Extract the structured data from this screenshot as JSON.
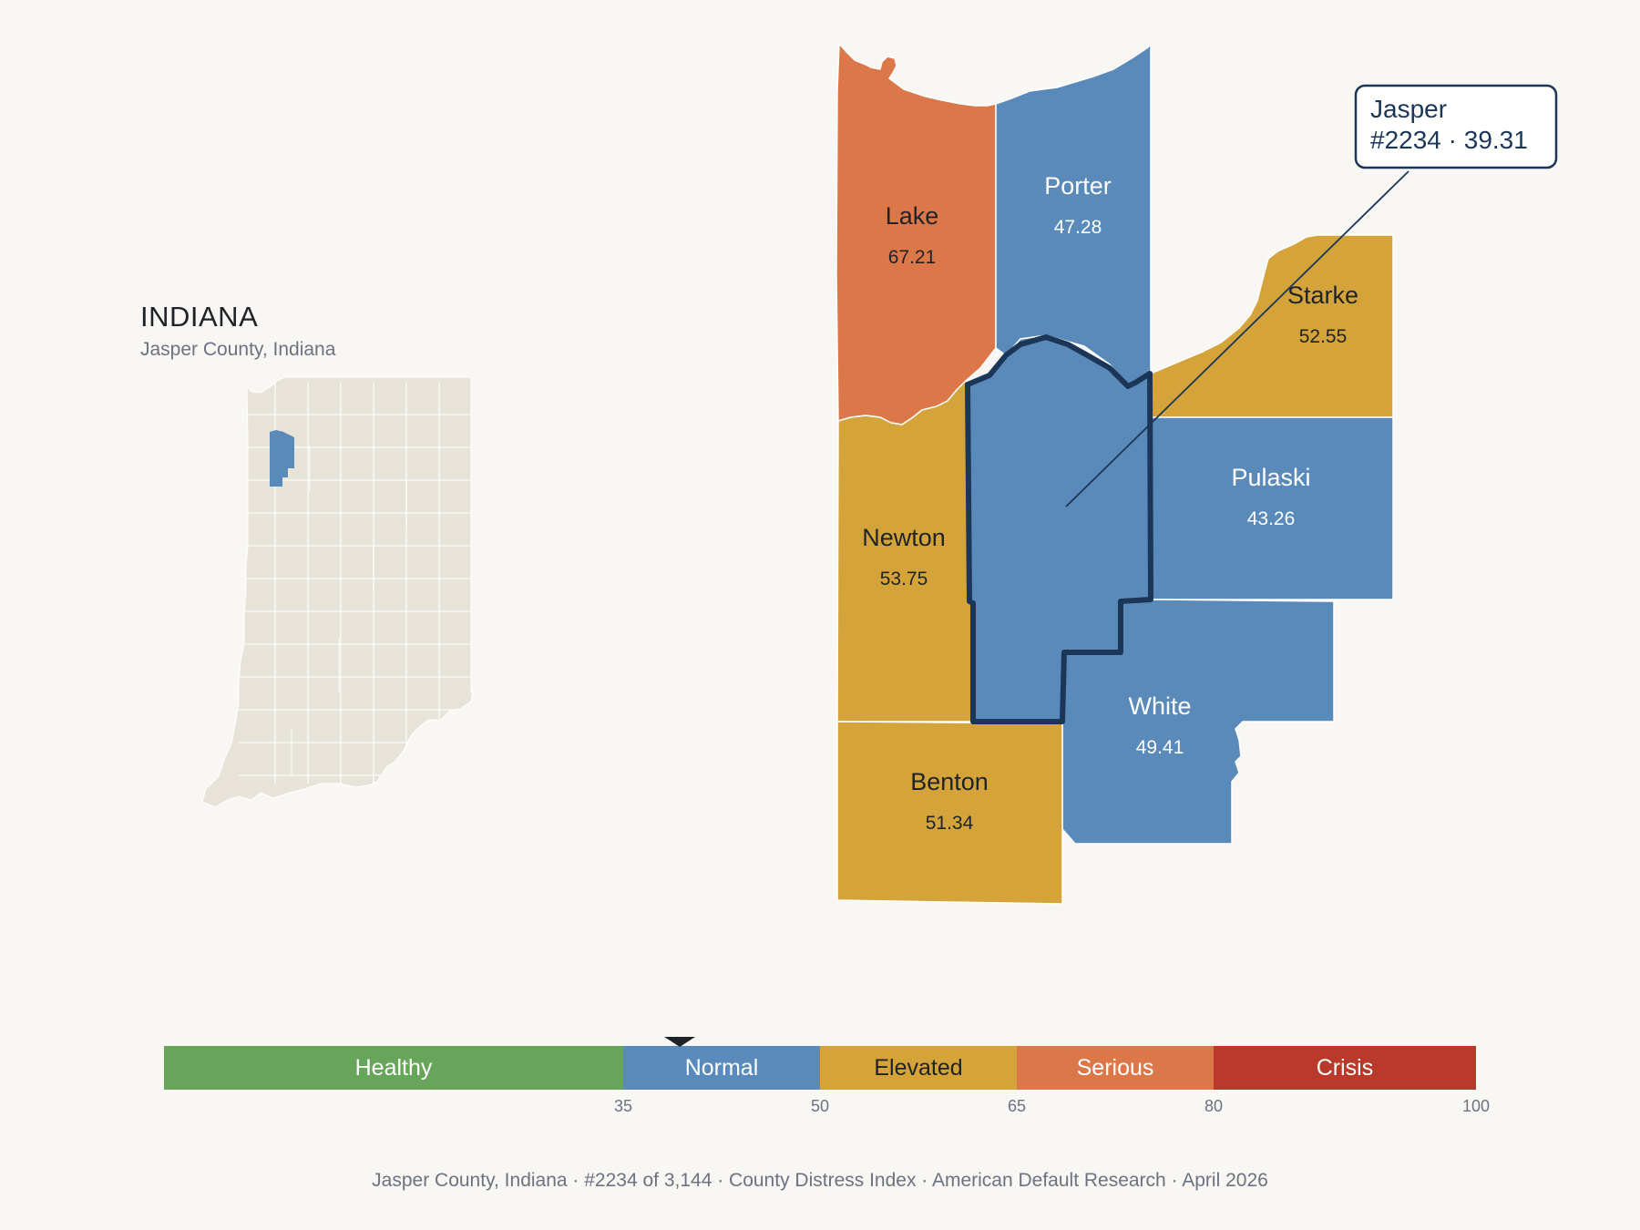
{
  "inset": {
    "state_title": "INDIANA",
    "subtitle": "Jasper County, Indiana"
  },
  "colors": {
    "healthy": "#67a65a",
    "normal": "#5a8ab9",
    "elevated": "#d4a43a",
    "serious": "#dc774a",
    "crisis": "#b9392b",
    "inset_fill": "#e8e3d8",
    "highlight_stroke": "#1c3658",
    "background": "#f9f7f4"
  },
  "counties": [
    {
      "id": "lake",
      "name": "Lake",
      "value": "67.21",
      "category": "serious"
    },
    {
      "id": "porter",
      "name": "Porter",
      "value": "47.28",
      "category": "normal"
    },
    {
      "id": "starke",
      "name": "Starke",
      "value": "52.55",
      "category": "elevated"
    },
    {
      "id": "newton",
      "name": "Newton",
      "value": "53.75",
      "category": "elevated"
    },
    {
      "id": "jasper",
      "name": "Jasper",
      "value": "39.31",
      "category": "normal"
    },
    {
      "id": "pulaski",
      "name": "Pulaski",
      "value": "43.26",
      "category": "normal"
    },
    {
      "id": "white",
      "name": "White",
      "value": "49.41",
      "category": "normal"
    },
    {
      "id": "benton",
      "name": "Benton",
      "value": "51.34",
      "category": "elevated"
    }
  ],
  "callout": {
    "line1": "Jasper",
    "line2": "#2234 · 39.31"
  },
  "legend": {
    "min": 0,
    "max": 100,
    "marker_value": 39.31,
    "bands": [
      {
        "label": "Healthy",
        "from": 0,
        "to": 35,
        "color": "#67a65a",
        "text_color": "#ffffff"
      },
      {
        "label": "Normal",
        "from": 35,
        "to": 50,
        "color": "#5a8ab9",
        "text_color": "#ffffff"
      },
      {
        "label": "Elevated",
        "from": 50,
        "to": 65,
        "color": "#d4a43a",
        "text_color": "#1f2328"
      },
      {
        "label": "Serious",
        "from": 65,
        "to": 80,
        "color": "#dc774a",
        "text_color": "#ffffff"
      },
      {
        "label": "Crisis",
        "from": 80,
        "to": 100,
        "color": "#b9392b",
        "text_color": "#ffffff"
      }
    ],
    "ticks": [
      "35",
      "50",
      "65",
      "80",
      "100"
    ]
  },
  "footer": "Jasper County, Indiana   ·   #2234 of 3,144   ·   County Distress Index   ·   American Default Research   ·   April 2026"
}
